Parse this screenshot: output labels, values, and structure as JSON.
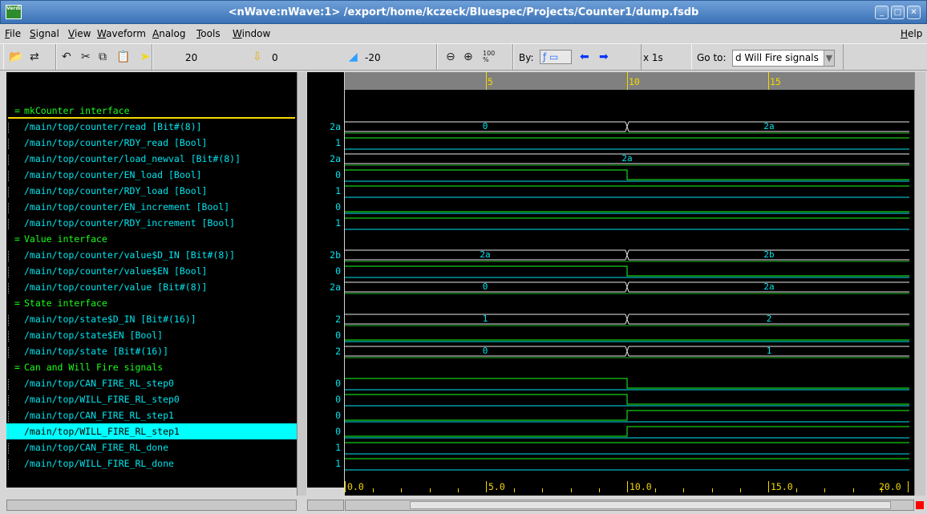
{
  "window": {
    "title": "<nWave:nWave:1> /export/home/kczeck/Bluespec/Projects/Counter1/dump.fsdb",
    "icon_text": "Verdi"
  },
  "menu": {
    "items": [
      "File",
      "Signal",
      "View",
      "Waveform",
      "Analog",
      "Tools",
      "Window"
    ],
    "help": "Help"
  },
  "toolbar": {
    "cursor_time": "20",
    "marker_time": "0",
    "delta_time": "-20",
    "zoom_100_label": "100\n%",
    "by_label": "By:",
    "timescale": "x 1s",
    "goto_label": "Go to:",
    "goto_value": "d Will Fire signals"
  },
  "groups": [
    {
      "name": "mkCounter interface",
      "signals": [
        {
          "name": "/main/top/counter/read [Bit#(8)]",
          "value": "2a"
        },
        {
          "name": "/main/top/counter/RDY_read [Bool]",
          "value": "1"
        },
        {
          "name": "/main/top/counter/load_newval [Bit#(8)]",
          "value": "2a"
        },
        {
          "name": "/main/top/counter/EN_load [Bool]",
          "value": "0"
        },
        {
          "name": "/main/top/counter/RDY_load [Bool]",
          "value": "1"
        },
        {
          "name": "/main/top/counter/EN_increment [Bool]",
          "value": "0"
        },
        {
          "name": "/main/top/counter/RDY_increment [Bool]",
          "value": "1"
        }
      ]
    },
    {
      "name": "Value interface",
      "signals": [
        {
          "name": "/main/top/counter/value$D_IN [Bit#(8)]",
          "value": "2b"
        },
        {
          "name": "/main/top/counter/value$EN [Bool]",
          "value": "0"
        },
        {
          "name": "/main/top/counter/value [Bit#(8)]",
          "value": "2a"
        }
      ]
    },
    {
      "name": "State interface",
      "signals": [
        {
          "name": "/main/top/state$D_IN [Bit#(16)]",
          "value": "2"
        },
        {
          "name": "/main/top/state$EN [Bool]",
          "value": "0"
        },
        {
          "name": "/main/top/state [Bit#(16)]",
          "value": "2"
        }
      ]
    },
    {
      "name": "Can and Will Fire signals",
      "signals": [
        {
          "name": "/main/top/CAN_FIRE_RL_step0",
          "value": "0"
        },
        {
          "name": "/main/top/WILL_FIRE_RL_step0",
          "value": "0"
        },
        {
          "name": "/main/top/CAN_FIRE_RL_step1",
          "value": "0"
        },
        {
          "name": "/main/top/WILL_FIRE_RL_step1",
          "value": "0",
          "selected": true
        },
        {
          "name": "/main/top/CAN_FIRE_RL_done",
          "value": "1"
        },
        {
          "name": "/main/top/WILL_FIRE_RL_done",
          "value": "1"
        }
      ]
    }
  ],
  "waveforms": [
    {
      "type": "bus",
      "segments": [
        {
          "t0": 0,
          "t1": 10,
          "label": "0"
        },
        {
          "t0": 10,
          "t1": 20,
          "label": "2a"
        }
      ]
    },
    {
      "type": "bit",
      "level": [
        [
          0,
          1
        ]
      ]
    },
    {
      "type": "bus",
      "segments": [
        {
          "t0": 0,
          "t1": 20,
          "label": "2a"
        }
      ]
    },
    {
      "type": "bit",
      "level": [
        [
          0,
          1
        ],
        [
          10,
          0
        ]
      ]
    },
    {
      "type": "bit",
      "level": [
        [
          0,
          1
        ]
      ]
    },
    {
      "type": "bit",
      "level": [
        [
          0,
          0
        ]
      ]
    },
    {
      "type": "bit",
      "level": [
        [
          0,
          1
        ]
      ]
    },
    {
      "type": "bus",
      "segments": [
        {
          "t0": 0,
          "t1": 10,
          "label": "2a"
        },
        {
          "t0": 10,
          "t1": 20,
          "label": "2b"
        }
      ]
    },
    {
      "type": "bit",
      "level": [
        [
          0,
          1
        ],
        [
          10,
          0
        ]
      ]
    },
    {
      "type": "bus",
      "segments": [
        {
          "t0": 0,
          "t1": 10,
          "label": "0"
        },
        {
          "t0": 10,
          "t1": 20,
          "label": "2a"
        }
      ]
    },
    {
      "type": "bus",
      "segments": [
        {
          "t0": 0,
          "t1": 10,
          "label": "1"
        },
        {
          "t0": 10,
          "t1": 20,
          "label": "2"
        }
      ]
    },
    {
      "type": "bit",
      "level": [
        [
          0,
          0
        ]
      ]
    },
    {
      "type": "bus",
      "segments": [
        {
          "t0": 0,
          "t1": 10,
          "label": "0"
        },
        {
          "t0": 10,
          "t1": 20,
          "label": "1"
        }
      ]
    },
    {
      "type": "bit",
      "level": [
        [
          0,
          1
        ],
        [
          10,
          0
        ]
      ]
    },
    {
      "type": "bit",
      "level": [
        [
          0,
          1
        ],
        [
          10,
          0
        ]
      ]
    },
    {
      "type": "bit",
      "level": [
        [
          0,
          0
        ],
        [
          10,
          1
        ]
      ]
    },
    {
      "type": "bit",
      "level": [
        [
          0,
          0
        ],
        [
          10,
          1
        ]
      ]
    },
    {
      "type": "bit",
      "level": [
        [
          0,
          1
        ]
      ]
    },
    {
      "type": "bit",
      "level": [
        [
          0,
          1
        ]
      ]
    }
  ],
  "ruler": {
    "top_labels": [
      "5",
      "10",
      "15"
    ],
    "bottom_labels": [
      "0.0",
      "5.0",
      "10.0",
      "15.0",
      "20.0"
    ],
    "range": [
      0,
      20
    ]
  },
  "colors": {
    "accent_cyan": "#00e5ee",
    "group_green": "#1aff1a",
    "ruler_yellow": "#f5d800",
    "high_green": "#1aff1a",
    "bus_white": "#e8e8e8"
  }
}
